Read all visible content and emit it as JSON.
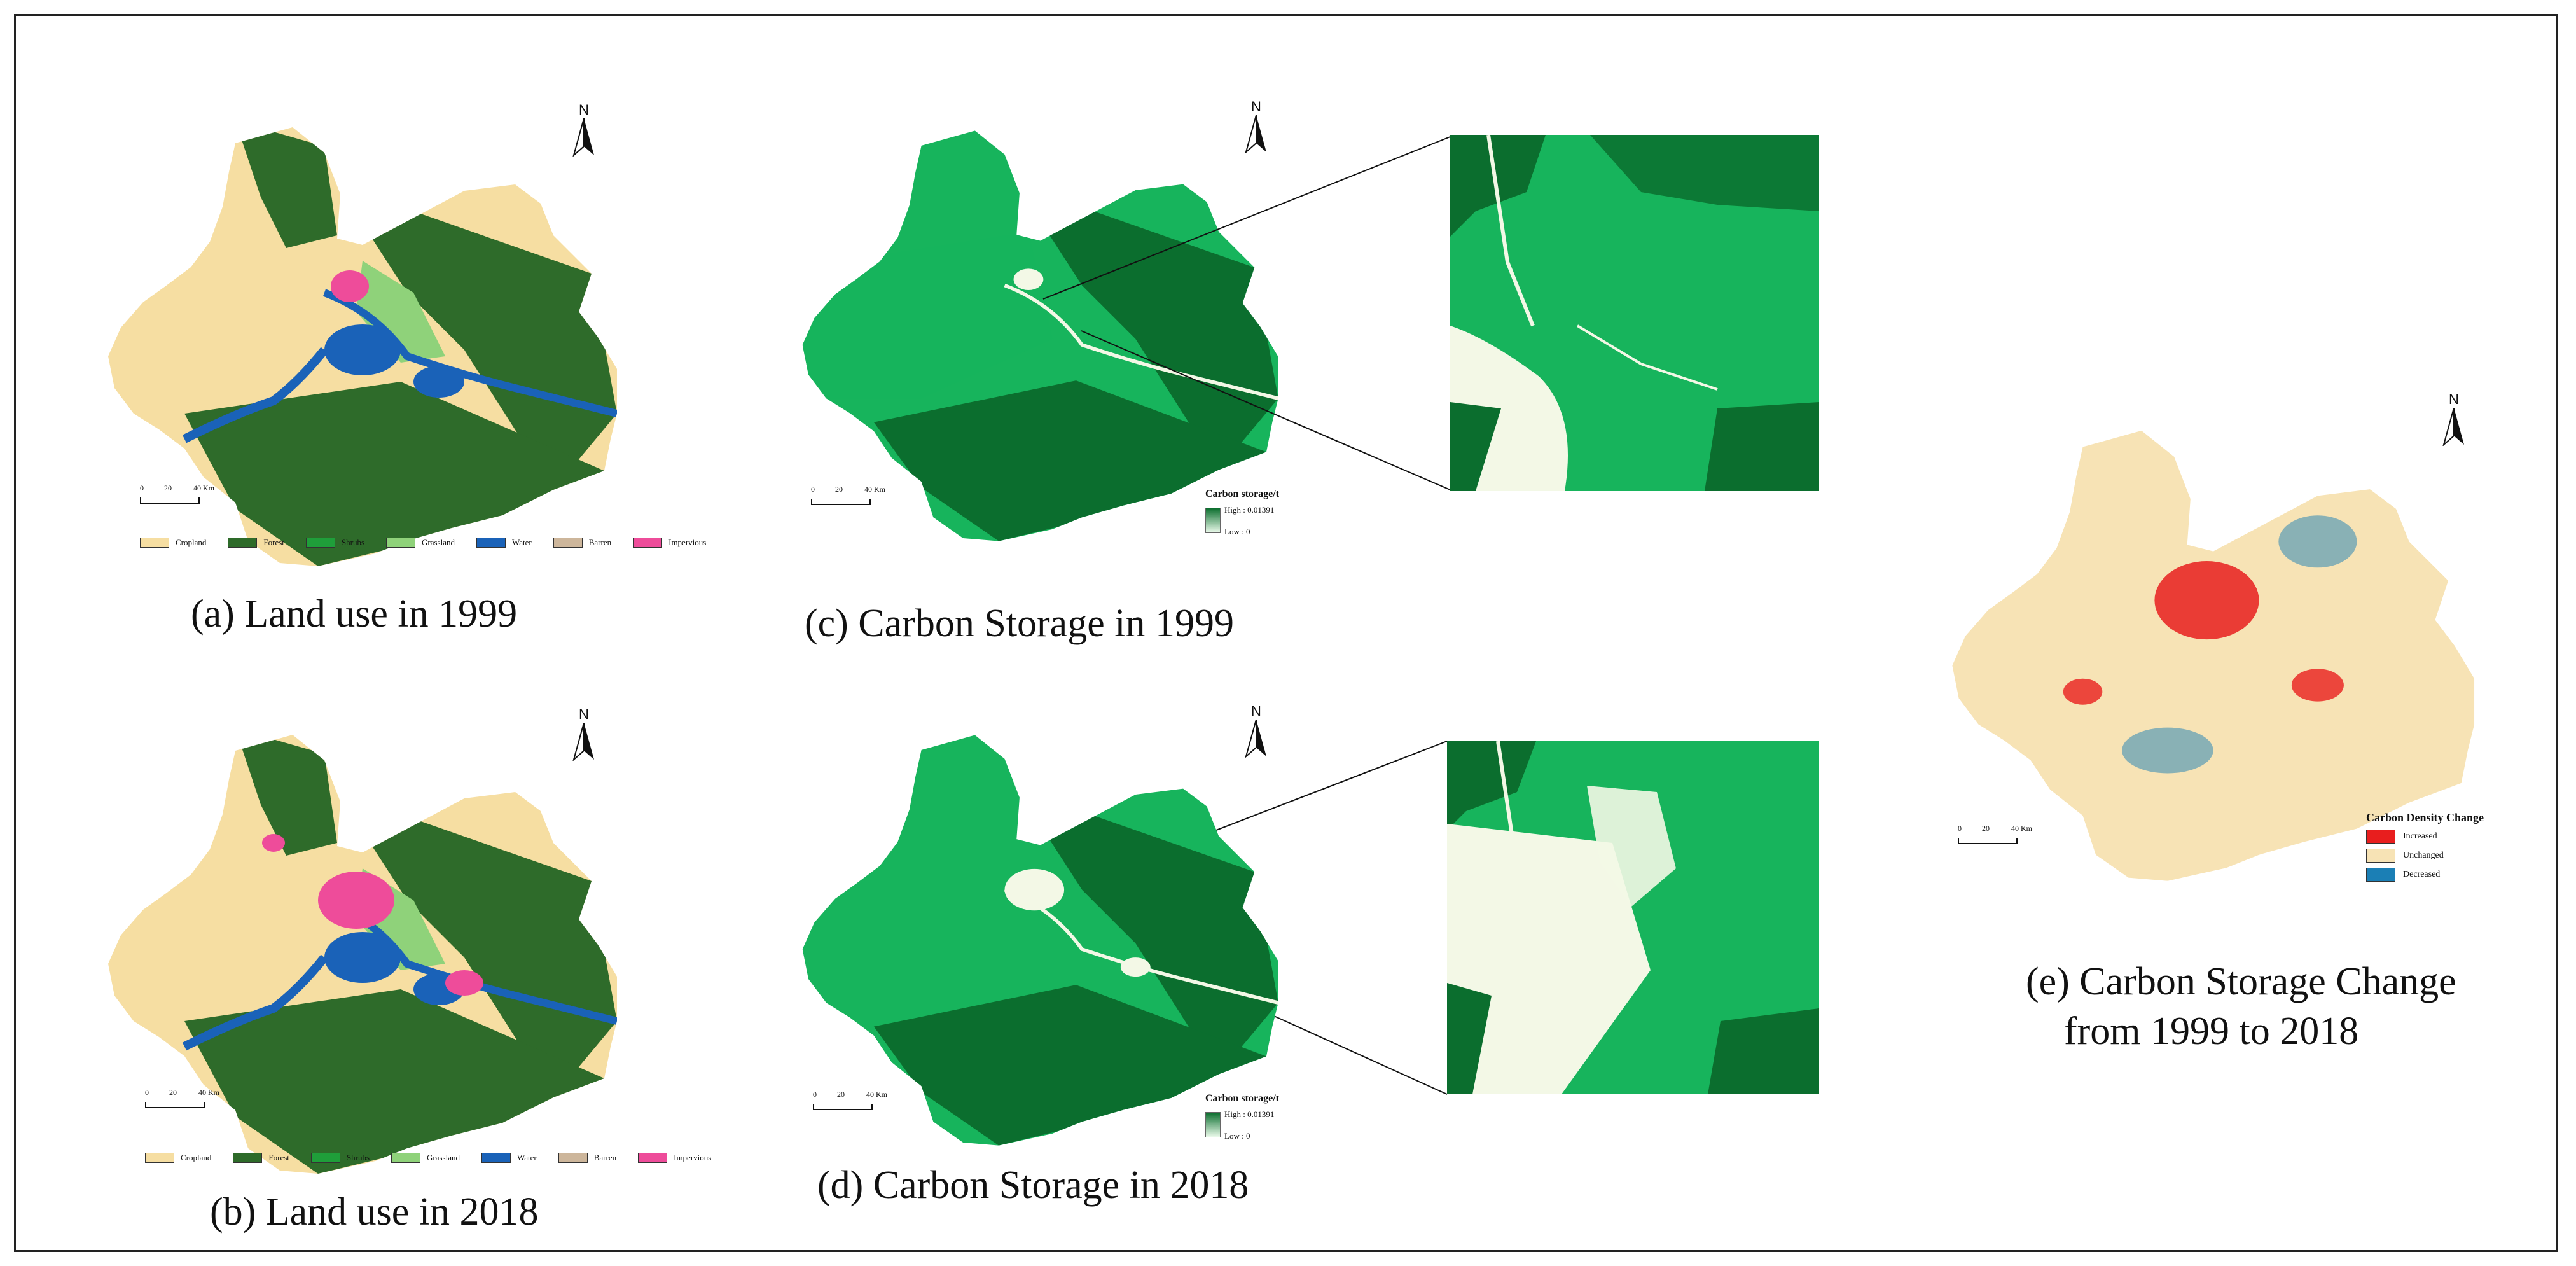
{
  "colors": {
    "cropland": "#f6dea2",
    "forest": "#2e6b2a",
    "shrubs": "#1f9e3a",
    "grassland": "#8fd27a",
    "water": "#1a62b8",
    "barren": "#cdb69b",
    "impervious": "#ee4c9a",
    "carbon_high": "#0b6e2e",
    "carbon_mid": "#17b45c",
    "carbon_low": "#f3f8e6",
    "increased": "#e81e1e",
    "unchanged": "#f7e3b5",
    "decreased": "#1b7fb5"
  },
  "landuse_legend": [
    "Cropland",
    "Forest",
    "Shrubs",
    "Grassland",
    "Water",
    "Barren",
    "Impervious"
  ],
  "scalebar": {
    "ticks": [
      "0",
      "20",
      "40 Km"
    ]
  },
  "north_label": "N",
  "panels": {
    "a": {
      "caption": "(a) Land use in 1999"
    },
    "b": {
      "caption": "(b) Land use in 2018"
    },
    "c": {
      "caption": "(c) Carbon Storage in 1999"
    },
    "d": {
      "caption": "(d) Carbon Storage in 2018"
    },
    "e": {
      "caption_line1": "(e) Carbon Storage Change",
      "caption_line2": "from 1999 to 2018"
    }
  },
  "carbon_legend": {
    "title": "Carbon storage/t",
    "high": "High : 0.01391",
    "low": "Low : 0"
  },
  "change_legend": {
    "title": "Carbon Density Change",
    "items": [
      "Increased",
      "Unchanged",
      "Decreased"
    ]
  }
}
